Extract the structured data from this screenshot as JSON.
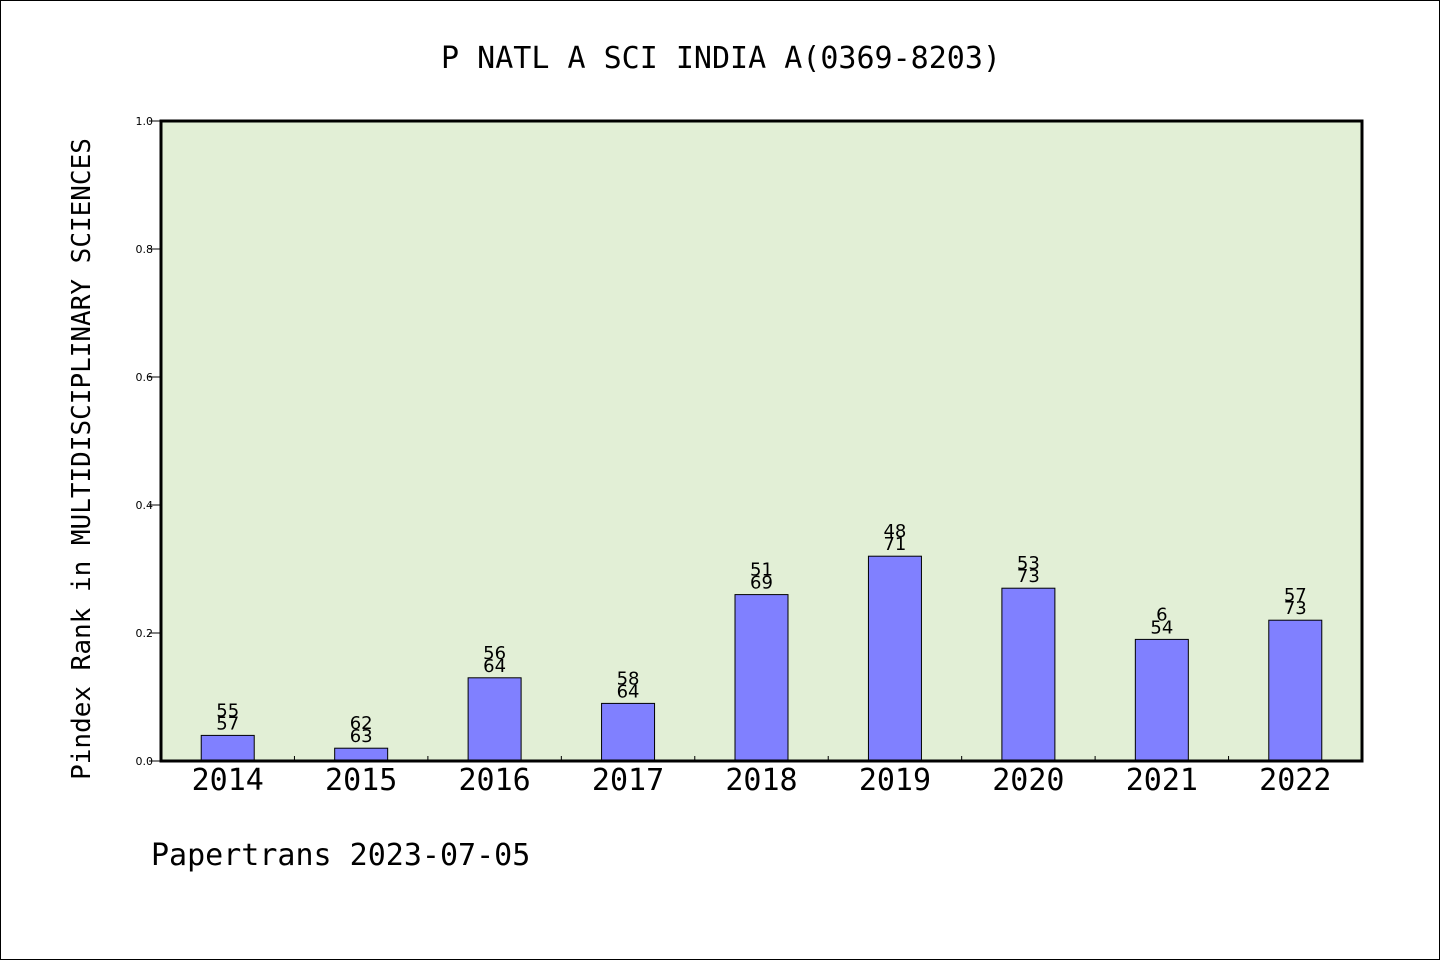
{
  "footer": "Papertrans 2023-07-05",
  "colors": {
    "plot_background": "#e2efd6",
    "bar_fill": "#8080ff",
    "bar_stroke": "#000000"
  },
  "chart_data": {
    "type": "bar",
    "title": "P NATL A SCI INDIA A(0369-8203)",
    "xlabel": "",
    "ylabel": "Pindex Rank in MULTIDISCIPLINARY SCIENCES",
    "ylim": [
      0,
      1.0
    ],
    "yticks": [
      "0.0",
      "0.2",
      "0.4",
      "0.6",
      "0.8",
      "1.0"
    ],
    "grid": false,
    "categories": [
      "2014",
      "2015",
      "2016",
      "2017",
      "2018",
      "2019",
      "2020",
      "2021",
      "2022"
    ],
    "values": [
      0.04,
      0.02,
      0.13,
      0.09,
      0.26,
      0.32,
      0.27,
      0.19,
      0.22
    ],
    "labels_top": [
      "55",
      "62",
      "56",
      "58",
      "51",
      "48",
      "53",
      "6",
      "57"
    ],
    "labels_bottom": [
      "57",
      "63",
      "64",
      "64",
      "69",
      "71",
      "73",
      "54",
      "73"
    ]
  }
}
